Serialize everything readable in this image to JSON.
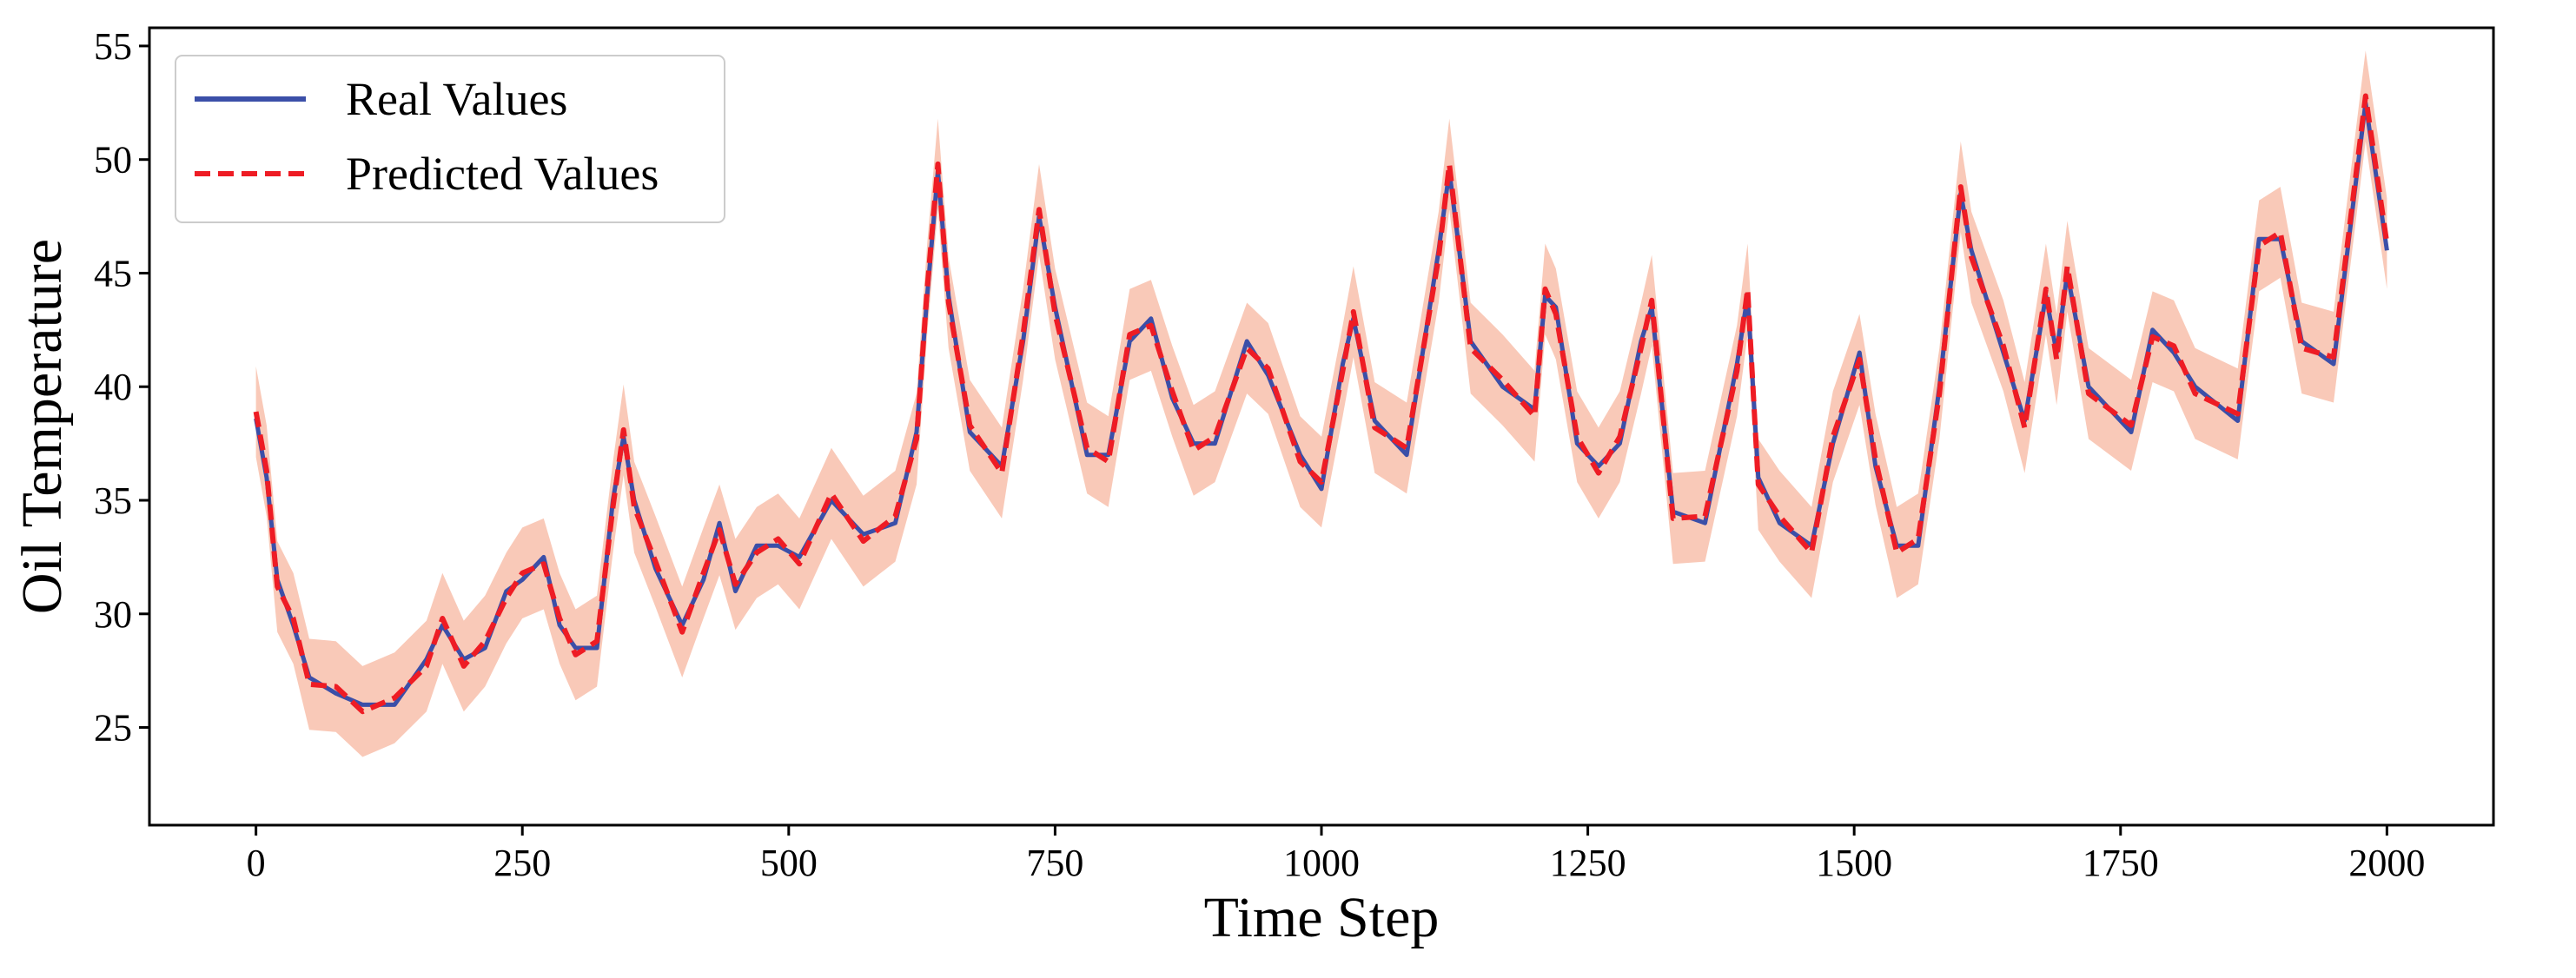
{
  "colors": {
    "real": "#3b4fa8",
    "predicted": "#ee1c24",
    "band": "#f7b7a0",
    "axis": "#000000",
    "background": "#ffffff"
  },
  "chart_data": {
    "type": "line",
    "title": "",
    "xlabel": "Time Step",
    "ylabel": "Oil Temperature",
    "xlim": [
      -100,
      2100
    ],
    "ylim": [
      20.7,
      55.8
    ],
    "x_ticks": [
      0,
      250,
      500,
      750,
      1000,
      1250,
      1500,
      1750,
      2000
    ],
    "y_ticks": [
      25,
      30,
      35,
      40,
      45,
      50,
      55
    ],
    "grid": false,
    "legend_placement": "top-left",
    "series": [
      {
        "name": "Real Values",
        "style": "solid",
        "x": [
          0,
          10,
          20,
          35,
          50,
          75,
          100,
          130,
          160,
          175,
          195,
          215,
          235,
          250,
          270,
          285,
          300,
          320,
          335,
          345,
          355,
          375,
          400,
          420,
          435,
          450,
          470,
          490,
          510,
          540,
          570,
          600,
          620,
          630,
          640,
          650,
          670,
          700,
          720,
          735,
          750,
          780,
          800,
          820,
          840,
          860,
          880,
          900,
          930,
          950,
          980,
          1000,
          1020,
          1030,
          1050,
          1080,
          1110,
          1120,
          1140,
          1170,
          1200,
          1210,
          1220,
          1240,
          1260,
          1280,
          1300,
          1310,
          1330,
          1360,
          1390,
          1400,
          1410,
          1430,
          1460,
          1480,
          1505,
          1520,
          1540,
          1560,
          1580,
          1600,
          1610,
          1640,
          1660,
          1680,
          1690,
          1700,
          1720,
          1760,
          1780,
          1800,
          1820,
          1860,
          1880,
          1900,
          1920,
          1950,
          1980,
          2000
        ],
        "y": [
          38.6,
          36.0,
          31.5,
          29.5,
          27.2,
          26.5,
          26.0,
          26.0,
          28.0,
          29.5,
          28.0,
          28.5,
          31.0,
          31.5,
          32.5,
          29.5,
          28.5,
          28.5,
          35.0,
          37.8,
          35.0,
          32.0,
          29.5,
          31.5,
          34.0,
          31.0,
          33.0,
          33.0,
          32.5,
          35.0,
          33.5,
          34.0,
          38.0,
          44.0,
          49.5,
          44.0,
          38.0,
          36.5,
          42.0,
          47.5,
          43.5,
          37.0,
          37.0,
          42.0,
          43.0,
          39.5,
          37.5,
          37.5,
          42.0,
          40.5,
          37.0,
          35.5,
          41.0,
          43.0,
          38.5,
          37.0,
          46.0,
          49.5,
          42.0,
          40.0,
          39.0,
          44.0,
          43.5,
          37.5,
          36.5,
          37.5,
          42.0,
          43.5,
          34.5,
          34.0,
          41.0,
          44.0,
          36.0,
          34.0,
          33.0,
          37.5,
          41.5,
          36.5,
          33.0,
          33.0,
          40.0,
          48.5,
          46.0,
          41.5,
          38.5,
          44.0,
          41.5,
          45.0,
          40.0,
          38.0,
          42.5,
          41.5,
          40.0,
          38.5,
          46.5,
          46.5,
          42.0,
          41.0,
          52.5,
          46.0
        ]
      },
      {
        "name": "Predicted Values",
        "style": "dashed",
        "x": [
          0,
          10,
          20,
          35,
          50,
          75,
          100,
          130,
          160,
          175,
          195,
          215,
          235,
          250,
          270,
          285,
          300,
          320,
          335,
          345,
          355,
          375,
          400,
          420,
          435,
          450,
          470,
          490,
          510,
          540,
          570,
          600,
          620,
          630,
          640,
          650,
          670,
          700,
          720,
          735,
          750,
          780,
          800,
          820,
          840,
          860,
          880,
          900,
          930,
          950,
          980,
          1000,
          1020,
          1030,
          1050,
          1080,
          1110,
          1120,
          1140,
          1170,
          1200,
          1210,
          1220,
          1240,
          1260,
          1280,
          1300,
          1310,
          1330,
          1360,
          1390,
          1400,
          1410,
          1430,
          1460,
          1480,
          1505,
          1520,
          1540,
          1560,
          1580,
          1600,
          1610,
          1640,
          1660,
          1680,
          1690,
          1700,
          1720,
          1760,
          1780,
          1800,
          1820,
          1860,
          1880,
          1900,
          1920,
          1950,
          1980,
          2000
        ],
        "y": [
          38.9,
          36.3,
          31.2,
          29.8,
          26.9,
          26.8,
          25.7,
          26.3,
          27.7,
          29.8,
          27.7,
          28.8,
          30.7,
          31.8,
          32.2,
          29.8,
          28.2,
          28.8,
          34.7,
          38.1,
          34.7,
          32.3,
          29.2,
          31.8,
          33.7,
          31.3,
          32.7,
          33.3,
          32.2,
          35.3,
          33.2,
          34.3,
          37.7,
          44.3,
          49.8,
          43.7,
          38.3,
          36.2,
          42.3,
          47.8,
          43.2,
          37.3,
          36.7,
          42.3,
          42.7,
          39.8,
          37.2,
          37.8,
          41.7,
          40.8,
          36.7,
          35.8,
          40.7,
          43.3,
          38.2,
          37.3,
          45.7,
          49.8,
          41.7,
          40.3,
          38.7,
          44.3,
          43.2,
          37.8,
          36.2,
          37.8,
          41.7,
          43.8,
          34.2,
          34.3,
          40.7,
          44.3,
          35.7,
          34.3,
          32.7,
          37.8,
          41.2,
          36.8,
          32.7,
          33.3,
          39.7,
          48.8,
          45.7,
          41.8,
          38.2,
          44.3,
          41.2,
          45.3,
          39.7,
          38.3,
          42.2,
          41.8,
          39.7,
          38.8,
          46.2,
          46.8,
          41.7,
          41.3,
          52.8,
          46.3
        ]
      }
    ],
    "confidence_band": {
      "x": [
        0,
        10,
        20,
        35,
        50,
        75,
        100,
        130,
        160,
        175,
        195,
        215,
        235,
        250,
        270,
        285,
        300,
        320,
        335,
        345,
        355,
        375,
        400,
        420,
        435,
        450,
        470,
        490,
        510,
        540,
        570,
        600,
        620,
        630,
        640,
        650,
        670,
        700,
        720,
        735,
        750,
        780,
        800,
        820,
        840,
        860,
        880,
        900,
        930,
        950,
        980,
        1000,
        1020,
        1030,
        1050,
        1080,
        1110,
        1120,
        1140,
        1170,
        1200,
        1210,
        1220,
        1240,
        1260,
        1280,
        1300,
        1310,
        1330,
        1360,
        1390,
        1400,
        1410,
        1430,
        1460,
        1480,
        1505,
        1520,
        1540,
        1560,
        1580,
        1600,
        1610,
        1640,
        1660,
        1680,
        1690,
        1700,
        1720,
        1760,
        1780,
        1800,
        1820,
        1860,
        1880,
        1900,
        1920,
        1950,
        1980,
        2000
      ],
      "lower": [
        36.9,
        34.3,
        29.2,
        27.8,
        24.9,
        24.8,
        23.7,
        24.3,
        25.7,
        27.8,
        25.7,
        26.8,
        28.7,
        29.8,
        30.2,
        27.8,
        26.2,
        26.8,
        32.7,
        36.1,
        32.7,
        30.3,
        27.2,
        29.8,
        31.7,
        29.3,
        30.7,
        31.3,
        30.2,
        33.3,
        31.2,
        32.3,
        35.7,
        42.3,
        47.8,
        41.7,
        36.3,
        34.2,
        40.3,
        45.8,
        41.2,
        35.3,
        34.7,
        40.3,
        40.7,
        37.8,
        35.2,
        35.8,
        39.7,
        38.8,
        34.7,
        33.8,
        38.7,
        41.3,
        36.2,
        35.3,
        43.7,
        47.8,
        39.7,
        38.3,
        36.7,
        42.3,
        41.2,
        35.8,
        34.2,
        35.8,
        39.7,
        41.8,
        32.2,
        32.3,
        38.7,
        42.3,
        33.7,
        32.3,
        30.7,
        35.8,
        39.2,
        34.8,
        30.7,
        31.3,
        37.7,
        46.8,
        43.7,
        39.8,
        36.2,
        42.3,
        39.2,
        43.3,
        37.7,
        36.3,
        40.2,
        39.8,
        37.7,
        36.8,
        44.2,
        44.8,
        39.7,
        39.3,
        50.8,
        44.3
      ],
      "upper": [
        40.9,
        38.3,
        33.2,
        31.8,
        28.9,
        28.8,
        27.7,
        28.3,
        29.7,
        31.8,
        29.7,
        30.8,
        32.7,
        33.8,
        34.2,
        31.8,
        30.2,
        30.8,
        36.7,
        40.1,
        36.7,
        34.3,
        31.2,
        33.8,
        35.7,
        33.3,
        34.7,
        35.3,
        34.2,
        37.3,
        35.2,
        36.3,
        39.7,
        46.3,
        51.8,
        45.7,
        40.3,
        38.2,
        44.3,
        49.8,
        45.2,
        39.3,
        38.7,
        44.3,
        44.7,
        41.8,
        39.2,
        39.8,
        43.7,
        42.8,
        38.7,
        37.8,
        42.7,
        45.3,
        40.2,
        39.3,
        47.7,
        51.8,
        43.7,
        42.3,
        40.7,
        46.3,
        45.2,
        39.8,
        38.2,
        39.8,
        43.7,
        45.8,
        36.2,
        36.3,
        42.7,
        46.3,
        37.7,
        36.3,
        34.7,
        39.8,
        43.2,
        38.8,
        34.7,
        35.3,
        41.7,
        50.8,
        47.7,
        43.8,
        40.2,
        46.3,
        43.2,
        47.3,
        41.7,
        40.3,
        44.2,
        43.8,
        41.7,
        40.8,
        48.2,
        48.8,
        43.7,
        43.3,
        54.8,
        48.3
      ]
    }
  }
}
